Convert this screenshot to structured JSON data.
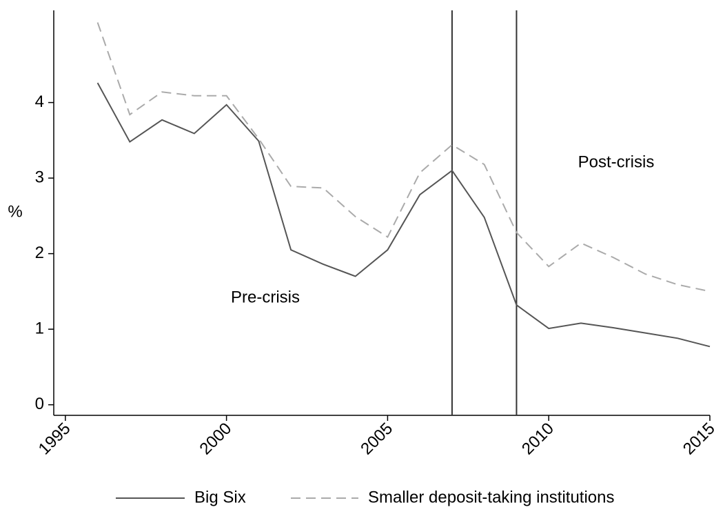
{
  "chart_data": {
    "type": "line",
    "y_label": "%",
    "x": [
      1996,
      1997,
      1998,
      1999,
      2000,
      2001,
      2002,
      2003,
      2004,
      2005,
      2006,
      2007,
      2008,
      2009,
      2010,
      2011,
      2012,
      2013,
      2014,
      2015
    ],
    "series": [
      {
        "name": "Big Six",
        "color": "#555555",
        "dash": "solid",
        "values": [
          4.26,
          3.48,
          3.77,
          3.59,
          3.97,
          3.49,
          2.05,
          1.86,
          1.7,
          2.05,
          2.78,
          3.1,
          2.48,
          1.32,
          1.01,
          1.08,
          1.02,
          0.95,
          0.88,
          0.77
        ]
      },
      {
        "name": "Smaller deposit-taking institutions",
        "color": "#aaaaaa",
        "dash": "dashed",
        "values": [
          5.06,
          3.84,
          4.14,
          4.09,
          4.09,
          3.52,
          2.89,
          2.87,
          2.49,
          2.22,
          3.07,
          3.44,
          3.18,
          2.28,
          1.83,
          2.14,
          1.95,
          1.73,
          1.59,
          1.5
        ]
      }
    ],
    "vlines": [
      2007,
      2009
    ],
    "annotations": [
      "Pre-crisis",
      "Post-crisis"
    ],
    "xlim": [
      1994.64,
      2015
    ],
    "xticks": [
      1995,
      2000,
      2005,
      2010,
      2015
    ],
    "ylim": [
      -0.14,
      5.22
    ],
    "yticks": [
      0,
      1,
      2,
      3,
      4
    ],
    "grid": false,
    "legend": "bottom"
  }
}
